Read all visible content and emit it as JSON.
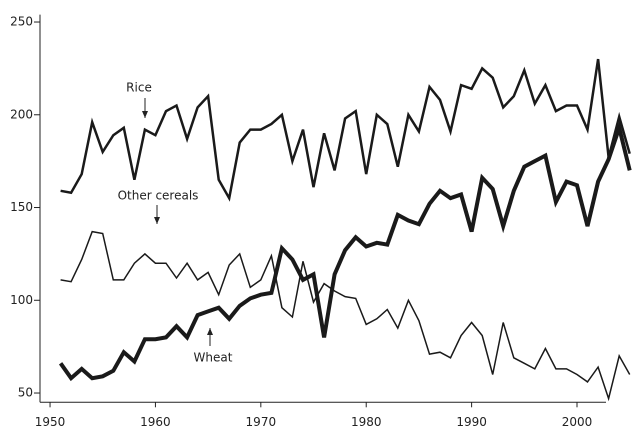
{
  "chart_data": {
    "type": "line",
    "x": [
      1951,
      1952,
      1953,
      1954,
      1955,
      1956,
      1957,
      1958,
      1959,
      1960,
      1961,
      1962,
      1963,
      1964,
      1965,
      1966,
      1967,
      1968,
      1969,
      1970,
      1971,
      1972,
      1973,
      1974,
      1975,
      1976,
      1977,
      1978,
      1979,
      1980,
      1981,
      1982,
      1983,
      1984,
      1985,
      1986,
      1987,
      1988,
      1989,
      1990,
      1991,
      1992,
      1993,
      1994,
      1995,
      1996,
      1997,
      1998,
      1999,
      2000,
      2001,
      2002,
      2003,
      2004,
      2005
    ],
    "series": [
      {
        "name": "Rice",
        "color": "#1a1a1a",
        "values": [
          159,
          158,
          168,
          196,
          180,
          189,
          193,
          165,
          192,
          189,
          202,
          205,
          187,
          204,
          210,
          165,
          155,
          185,
          192,
          192,
          195,
          200,
          175,
          192,
          161,
          190,
          170,
          198,
          202,
          168,
          200,
          195,
          172,
          200,
          191,
          215,
          208,
          191,
          216,
          214,
          225,
          220,
          204,
          210,
          224,
          206,
          216,
          202,
          205,
          205,
          192,
          230,
          177,
          199,
          179
        ]
      },
      {
        "name": "Other cereals",
        "color": "#1a1a1a",
        "values": [
          111,
          110,
          122,
          137,
          136,
          111,
          111,
          120,
          125,
          120,
          120,
          112,
          120,
          111,
          115,
          103,
          119,
          125,
          107,
          111,
          124,
          96,
          91,
          121,
          99,
          109,
          105,
          102,
          101,
          87,
          90,
          95,
          85,
          100,
          89,
          71,
          72,
          69,
          81,
          88,
          81,
          60,
          88,
          69,
          66,
          63,
          74,
          63,
          63,
          60,
          56,
          64,
          47,
          70,
          60
        ]
      },
      {
        "name": "Wheat",
        "color": "#1a1a1a",
        "values": [
          66,
          58,
          63,
          58,
          59,
          62,
          72,
          67,
          79,
          79,
          80,
          86,
          80,
          92,
          94,
          96,
          90,
          97,
          101,
          103,
          104,
          128,
          122,
          111,
          114,
          80,
          114,
          127,
          134,
          129,
          131,
          130,
          146,
          143,
          141,
          152,
          159,
          155,
          157,
          137,
          166,
          160,
          140,
          159,
          172,
          175,
          178,
          153,
          164,
          162,
          140,
          164,
          176,
          193,
          170
        ]
      }
    ],
    "xlim": [
      1949,
      2005
    ],
    "xticks": [
      1950,
      1960,
      1970,
      1980,
      1990,
      2000
    ],
    "ylim": [
      45,
      254
    ],
    "yticks": [
      50,
      100,
      150,
      200,
      250
    ]
  }
}
